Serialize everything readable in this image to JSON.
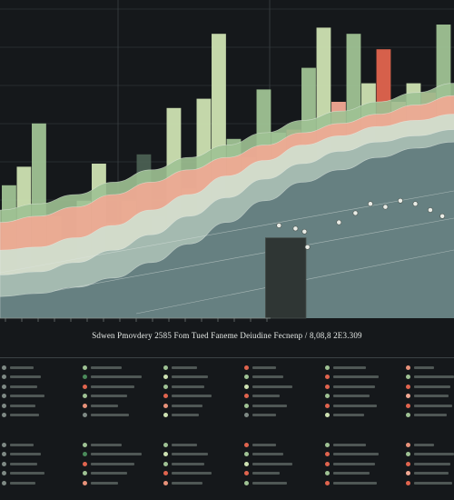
{
  "chart_data": {
    "type": "bar",
    "bars": [
      {
        "x": 0,
        "top": 0.43,
        "color": "#9fc294"
      },
      {
        "x": 1,
        "top": 0.49,
        "color": "#cde1b2"
      },
      {
        "x": 2,
        "top": 0.63,
        "color": "#9fc294"
      },
      {
        "x": 3,
        "top": 0.33,
        "color": "#e8927a"
      },
      {
        "x": 4,
        "top": 0.25,
        "color": "#4a5f52"
      },
      {
        "x": 5,
        "top": 0.38,
        "color": "#cde1b2"
      },
      {
        "x": 6,
        "top": 0.5,
        "color": "#cde1b2"
      },
      {
        "x": 7,
        "top": 0.31,
        "color": "#9fc294"
      },
      {
        "x": 8,
        "top": 0.38,
        "color": "#9fc294"
      },
      {
        "x": 9,
        "top": 0.53,
        "color": "#4a5f52"
      },
      {
        "x": 10,
        "top": 0.33,
        "color": "#cde1b2"
      },
      {
        "x": 11,
        "top": 0.68,
        "color": "#cde1b2"
      },
      {
        "x": 12,
        "top": 0.42,
        "color": "#9fc294"
      },
      {
        "x": 13,
        "top": 0.71,
        "color": "#cde1b2"
      },
      {
        "x": 14,
        "top": 0.92,
        "color": "#cde1b2"
      },
      {
        "x": 15,
        "top": 0.58,
        "color": "#9fc294"
      },
      {
        "x": 16,
        "top": 0.52,
        "color": "#f2a893"
      },
      {
        "x": 17,
        "top": 0.74,
        "color": "#9fc294"
      },
      {
        "x": 18,
        "top": 0.6,
        "color": "#9fc294"
      },
      {
        "x": 19,
        "top": 0.61,
        "color": "#e0644e"
      },
      {
        "x": 20,
        "top": 0.81,
        "color": "#9fc294"
      },
      {
        "x": 21,
        "top": 0.94,
        "color": "#cde1b2"
      },
      {
        "x": 22,
        "top": 0.7,
        "color": "#f2a893"
      },
      {
        "x": 23,
        "top": 0.92,
        "color": "#9fc294"
      },
      {
        "x": 24,
        "top": 0.76,
        "color": "#cde1b2"
      },
      {
        "x": 25,
        "top": 0.87,
        "color": "#e0644e"
      },
      {
        "x": 26,
        "top": 0.7,
        "color": "#f2a893"
      },
      {
        "x": 27,
        "top": 0.76,
        "color": "#cde1b2"
      },
      {
        "x": 28,
        "top": 0.73,
        "color": "#e0644e"
      },
      {
        "x": 29,
        "top": 0.95,
        "color": "#9fc294"
      }
    ],
    "bands": [
      {
        "color": "#9fc294",
        "values": [
          0.35,
          0.37,
          0.4,
          0.44,
          0.48,
          0.52,
          0.56,
          0.6,
          0.64,
          0.67,
          0.7,
          0.73,
          0.76
        ]
      },
      {
        "color": "#f2a893",
        "values": [
          0.31,
          0.33,
          0.36,
          0.4,
          0.44,
          0.48,
          0.52,
          0.56,
          0.6,
          0.63,
          0.66,
          0.69,
          0.72
        ]
      },
      {
        "color": "#cfe0d0",
        "values": [
          0.22,
          0.23,
          0.26,
          0.3,
          0.35,
          0.4,
          0.46,
          0.51,
          0.56,
          0.59,
          0.62,
          0.64,
          0.66
        ]
      },
      {
        "color": "#9fb6ad",
        "values": [
          0.14,
          0.15,
          0.18,
          0.22,
          0.27,
          0.33,
          0.39,
          0.45,
          0.5,
          0.54,
          0.57,
          0.59,
          0.61
        ]
      },
      {
        "color": "#5f7a7c",
        "values": [
          0.07,
          0.08,
          0.1,
          0.13,
          0.18,
          0.24,
          0.31,
          0.38,
          0.44,
          0.48,
          0.52,
          0.55,
          0.57
        ]
      }
    ],
    "dark_box": {
      "x": 17.6,
      "top": 0.26
    },
    "points": [
      {
        "x": 18.5,
        "y": 0.3
      },
      {
        "x": 19.6,
        "y": 0.29
      },
      {
        "x": 20.2,
        "y": 0.28
      },
      {
        "x": 22.5,
        "y": 0.31
      },
      {
        "x": 23.6,
        "y": 0.34
      },
      {
        "x": 24.6,
        "y": 0.37
      },
      {
        "x": 25.6,
        "y": 0.36
      },
      {
        "x": 26.6,
        "y": 0.38
      },
      {
        "x": 27.6,
        "y": 0.37
      },
      {
        "x": 28.6,
        "y": 0.35
      },
      {
        "x": 29.4,
        "y": 0.33
      },
      {
        "x": 20.4,
        "y": 0.23
      }
    ],
    "accent_colors": [
      "#9fc294",
      "#cde1b2",
      "#e0644e",
      "#f2a893",
      "#5f7a7c",
      "#4a5f52"
    ]
  },
  "legend": {
    "columns": [
      {
        "dots": [
          "#7f8a85",
          "#7f8a85",
          "#7f8a85",
          "#7f8a85",
          "#7f8a85",
          "#7f8a85"
        ],
        "bars": [
          26,
          34,
          30,
          38,
          28,
          32
        ]
      },
      {
        "dots": [
          "#9fc294",
          "#4a8a5a",
          "#e0644e",
          "#9fc294",
          "#e8927a",
          "#7f8a85"
        ],
        "bars": [
          34,
          56,
          48,
          40,
          30,
          42
        ]
      },
      {
        "dots": [
          "#9fc294",
          "#cde1b2",
          "#9fc294",
          "#e0644e",
          "#e8927a",
          "#cde1b2"
        ],
        "bars": [
          28,
          40,
          36,
          44,
          34,
          30
        ]
      },
      {
        "dots": [
          "#e0644e",
          "#9fc294",
          "#cde1b2",
          "#e0644e",
          "#9fc294",
          "#7f8a85"
        ],
        "bars": [
          26,
          34,
          44,
          30,
          38,
          26
        ]
      },
      {
        "dots": [
          "#9fc294",
          "#e0644e",
          "#e0644e",
          "#9fc294",
          "#e0644e",
          "#cde1b2"
        ],
        "bars": [
          36,
          50,
          46,
          40,
          48,
          34
        ]
      },
      {
        "dots": [
          "#e8927a",
          "#9fc294",
          "#e0644e",
          "#f2a893",
          "#e0644e",
          "#9fc294"
        ],
        "bars": [
          22,
          44,
          40,
          38,
          42,
          36
        ]
      }
    ]
  }
}
